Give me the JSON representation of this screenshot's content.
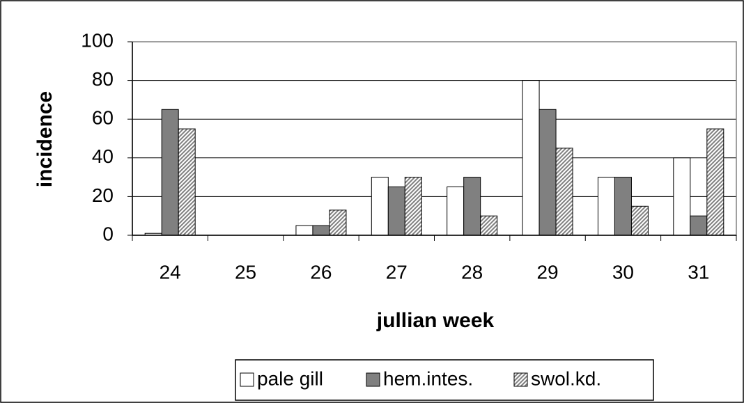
{
  "chart_data": {
    "type": "bar",
    "x_label": "jullian week",
    "y_label": "incidence",
    "categories": [
      "24",
      "25",
      "26",
      "27",
      "28",
      "29",
      "30",
      "31"
    ],
    "series": [
      {
        "name": "pale gill",
        "color": "#ffffff",
        "values": [
          1,
          0,
          5,
          30,
          25,
          80,
          30,
          40
        ]
      },
      {
        "name": "hem.intes.",
        "color": "#808080",
        "values": [
          65,
          0,
          5,
          25,
          30,
          65,
          30,
          10
        ]
      },
      {
        "name": "swol.kd.",
        "color": "#c0c0c0",
        "pattern": "hatch",
        "values": [
          55,
          0,
          13,
          30,
          10,
          45,
          15,
          55
        ]
      }
    ],
    "ylim": [
      0,
      100
    ],
    "yticks": [
      0,
      20,
      40,
      60,
      80,
      100
    ],
    "grid": true,
    "legend": "bottom"
  }
}
